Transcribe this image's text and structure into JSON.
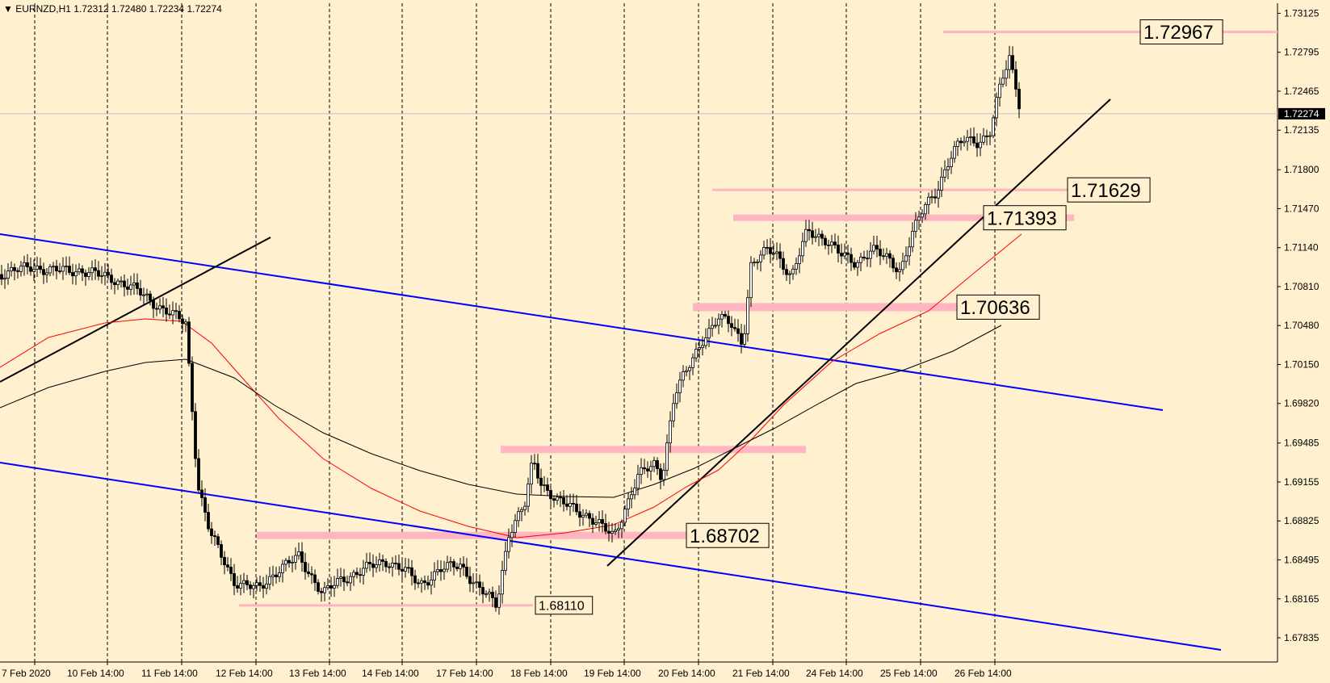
{
  "header": {
    "symbol": "EURNZD,H1",
    "open": "1.72312",
    "high": "1.72480",
    "low": "1.72234",
    "close": "1.72274"
  },
  "chart_data": {
    "type": "candlestick",
    "symbol": "EURNZD",
    "timeframe": "H1",
    "ylim": [
      1.676,
      1.7325
    ],
    "grid": "vertical dashed",
    "y_ticks": [
      "1.73125",
      "1.72795",
      "1.72465",
      "1.72135",
      "1.71800",
      "1.71470",
      "1.71140",
      "1.70810",
      "1.70480",
      "1.70150",
      "1.69820",
      "1.69485",
      "1.69155",
      "1.68825",
      "1.68495",
      "1.68165",
      "1.67835"
    ],
    "x_ticks": [
      "7 Feb 2020",
      "10 Feb 14:00",
      "11 Feb 14:00",
      "12 Feb 14:00",
      "13 Feb 14:00",
      "14 Feb 14:00",
      "17 Feb 14:00",
      "18 Feb 14:00",
      "19 Feb 14:00",
      "20 Feb 14:00",
      "21 Feb 14:00",
      "24 Feb 14:00",
      "25 Feb 14:00",
      "26 Feb 14:00"
    ],
    "current_price": "1.72274",
    "level_labels": [
      "1.72967",
      "1.71629",
      "1.71393",
      "1.70636",
      "1.68702",
      "1.68110"
    ],
    "colors": {
      "background": "#FFF0D0",
      "candles": "#000000",
      "channel": "#0000FF",
      "trendline": "#000000",
      "zone": "#FFB6C1",
      "ma_fast": "#FF0000",
      "ma_slow": "#000000"
    }
  }
}
